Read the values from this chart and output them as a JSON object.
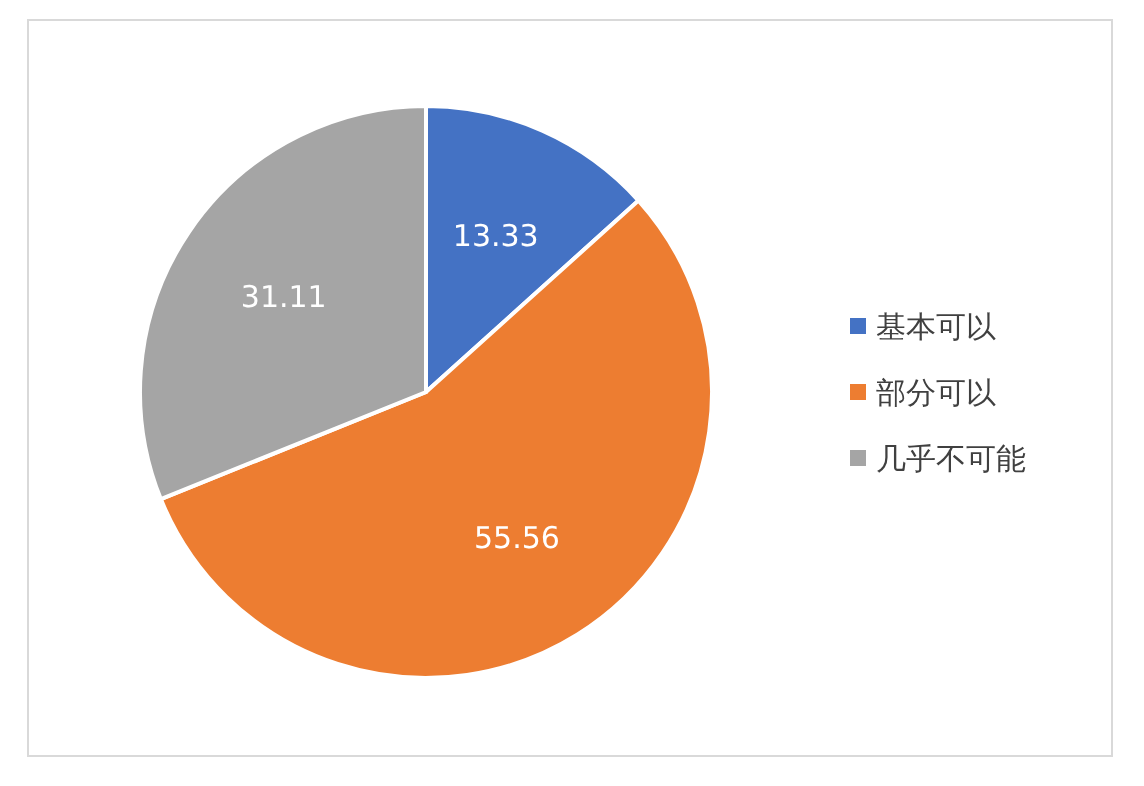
{
  "chart_data": {
    "type": "pie",
    "categories": [
      "基本可以",
      "部分可以",
      "几乎不可能"
    ],
    "values": [
      13.33,
      55.56,
      31.11
    ],
    "colors": [
      "#4472c4",
      "#ed7d31",
      "#a5a5a5"
    ],
    "data_labels": true,
    "legend": "right"
  }
}
